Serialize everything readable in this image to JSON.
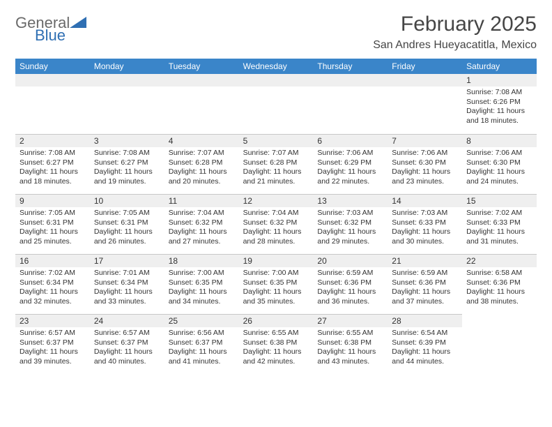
{
  "logo": {
    "line1": "General",
    "line2": "Blue"
  },
  "title": "February 2025",
  "location": "San Andres Huyacatitla, Mexico",
  "location_full": "San Andres Hueyacatitla, Mexico",
  "colors": {
    "header_bar": "#3a85c9",
    "header_text": "#ffffff",
    "daynum_bg": "#efefef",
    "border": "#c7c7c7",
    "text": "#333333",
    "logo_gray": "#6a6a6a",
    "logo_blue": "#2f6fb3"
  },
  "weekdays": [
    "Sunday",
    "Monday",
    "Tuesday",
    "Wednesday",
    "Thursday",
    "Friday",
    "Saturday"
  ],
  "cells": [
    {
      "empty": true
    },
    {
      "empty": true
    },
    {
      "empty": true
    },
    {
      "empty": true
    },
    {
      "empty": true
    },
    {
      "empty": true
    },
    {
      "day": "1",
      "sunrise": "Sunrise: 7:08 AM",
      "sunset": "Sunset: 6:26 PM",
      "daylight1": "Daylight: 11 hours",
      "daylight2": "and 18 minutes."
    },
    {
      "day": "2",
      "sunrise": "Sunrise: 7:08 AM",
      "sunset": "Sunset: 6:27 PM",
      "daylight1": "Daylight: 11 hours",
      "daylight2": "and 18 minutes."
    },
    {
      "day": "3",
      "sunrise": "Sunrise: 7:08 AM",
      "sunset": "Sunset: 6:27 PM",
      "daylight1": "Daylight: 11 hours",
      "daylight2": "and 19 minutes."
    },
    {
      "day": "4",
      "sunrise": "Sunrise: 7:07 AM",
      "sunset": "Sunset: 6:28 PM",
      "daylight1": "Daylight: 11 hours",
      "daylight2": "and 20 minutes."
    },
    {
      "day": "5",
      "sunrise": "Sunrise: 7:07 AM",
      "sunset": "Sunset: 6:28 PM",
      "daylight1": "Daylight: 11 hours",
      "daylight2": "and 21 minutes."
    },
    {
      "day": "6",
      "sunrise": "Sunrise: 7:06 AM",
      "sunset": "Sunset: 6:29 PM",
      "daylight1": "Daylight: 11 hours",
      "daylight2": "and 22 minutes."
    },
    {
      "day": "7",
      "sunrise": "Sunrise: 7:06 AM",
      "sunset": "Sunset: 6:30 PM",
      "daylight1": "Daylight: 11 hours",
      "daylight2": "and 23 minutes."
    },
    {
      "day": "8",
      "sunrise": "Sunrise: 7:06 AM",
      "sunset": "Sunset: 6:30 PM",
      "daylight1": "Daylight: 11 hours",
      "daylight2": "and 24 minutes."
    },
    {
      "day": "9",
      "sunrise": "Sunrise: 7:05 AM",
      "sunset": "Sunset: 6:31 PM",
      "daylight1": "Daylight: 11 hours",
      "daylight2": "and 25 minutes."
    },
    {
      "day": "10",
      "sunrise": "Sunrise: 7:05 AM",
      "sunset": "Sunset: 6:31 PM",
      "daylight1": "Daylight: 11 hours",
      "daylight2": "and 26 minutes."
    },
    {
      "day": "11",
      "sunrise": "Sunrise: 7:04 AM",
      "sunset": "Sunset: 6:32 PM",
      "daylight1": "Daylight: 11 hours",
      "daylight2": "and 27 minutes."
    },
    {
      "day": "12",
      "sunrise": "Sunrise: 7:04 AM",
      "sunset": "Sunset: 6:32 PM",
      "daylight1": "Daylight: 11 hours",
      "daylight2": "and 28 minutes."
    },
    {
      "day": "13",
      "sunrise": "Sunrise: 7:03 AM",
      "sunset": "Sunset: 6:32 PM",
      "daylight1": "Daylight: 11 hours",
      "daylight2": "and 29 minutes."
    },
    {
      "day": "14",
      "sunrise": "Sunrise: 7:03 AM",
      "sunset": "Sunset: 6:33 PM",
      "daylight1": "Daylight: 11 hours",
      "daylight2": "and 30 minutes."
    },
    {
      "day": "15",
      "sunrise": "Sunrise: 7:02 AM",
      "sunset": "Sunset: 6:33 PM",
      "daylight1": "Daylight: 11 hours",
      "daylight2": "and 31 minutes."
    },
    {
      "day": "16",
      "sunrise": "Sunrise: 7:02 AM",
      "sunset": "Sunset: 6:34 PM",
      "daylight1": "Daylight: 11 hours",
      "daylight2": "and 32 minutes."
    },
    {
      "day": "17",
      "sunrise": "Sunrise: 7:01 AM",
      "sunset": "Sunset: 6:34 PM",
      "daylight1": "Daylight: 11 hours",
      "daylight2": "and 33 minutes."
    },
    {
      "day": "18",
      "sunrise": "Sunrise: 7:00 AM",
      "sunset": "Sunset: 6:35 PM",
      "daylight1": "Daylight: 11 hours",
      "daylight2": "and 34 minutes."
    },
    {
      "day": "19",
      "sunrise": "Sunrise: 7:00 AM",
      "sunset": "Sunset: 6:35 PM",
      "daylight1": "Daylight: 11 hours",
      "daylight2": "and 35 minutes."
    },
    {
      "day": "20",
      "sunrise": "Sunrise: 6:59 AM",
      "sunset": "Sunset: 6:36 PM",
      "daylight1": "Daylight: 11 hours",
      "daylight2": "and 36 minutes."
    },
    {
      "day": "21",
      "sunrise": "Sunrise: 6:59 AM",
      "sunset": "Sunset: 6:36 PM",
      "daylight1": "Daylight: 11 hours",
      "daylight2": "and 37 minutes."
    },
    {
      "day": "22",
      "sunrise": "Sunrise: 6:58 AM",
      "sunset": "Sunset: 6:36 PM",
      "daylight1": "Daylight: 11 hours",
      "daylight2": "and 38 minutes."
    },
    {
      "day": "23",
      "sunrise": "Sunrise: 6:57 AM",
      "sunset": "Sunset: 6:37 PM",
      "daylight1": "Daylight: 11 hours",
      "daylight2": "and 39 minutes."
    },
    {
      "day": "24",
      "sunrise": "Sunrise: 6:57 AM",
      "sunset": "Sunset: 6:37 PM",
      "daylight1": "Daylight: 11 hours",
      "daylight2": "and 40 minutes."
    },
    {
      "day": "25",
      "sunrise": "Sunrise: 6:56 AM",
      "sunset": "Sunset: 6:37 PM",
      "daylight1": "Daylight: 11 hours",
      "daylight2": "and 41 minutes."
    },
    {
      "day": "26",
      "sunrise": "Sunrise: 6:55 AM",
      "sunset": "Sunset: 6:38 PM",
      "daylight1": "Daylight: 11 hours",
      "daylight2": "and 42 minutes."
    },
    {
      "day": "27",
      "sunrise": "Sunrise: 6:55 AM",
      "sunset": "Sunset: 6:38 PM",
      "daylight1": "Daylight: 11 hours",
      "daylight2": "and 43 minutes."
    },
    {
      "day": "28",
      "sunrise": "Sunrise: 6:54 AM",
      "sunset": "Sunset: 6:39 PM",
      "daylight1": "Daylight: 11 hours",
      "daylight2": "and 44 minutes."
    }
  ]
}
